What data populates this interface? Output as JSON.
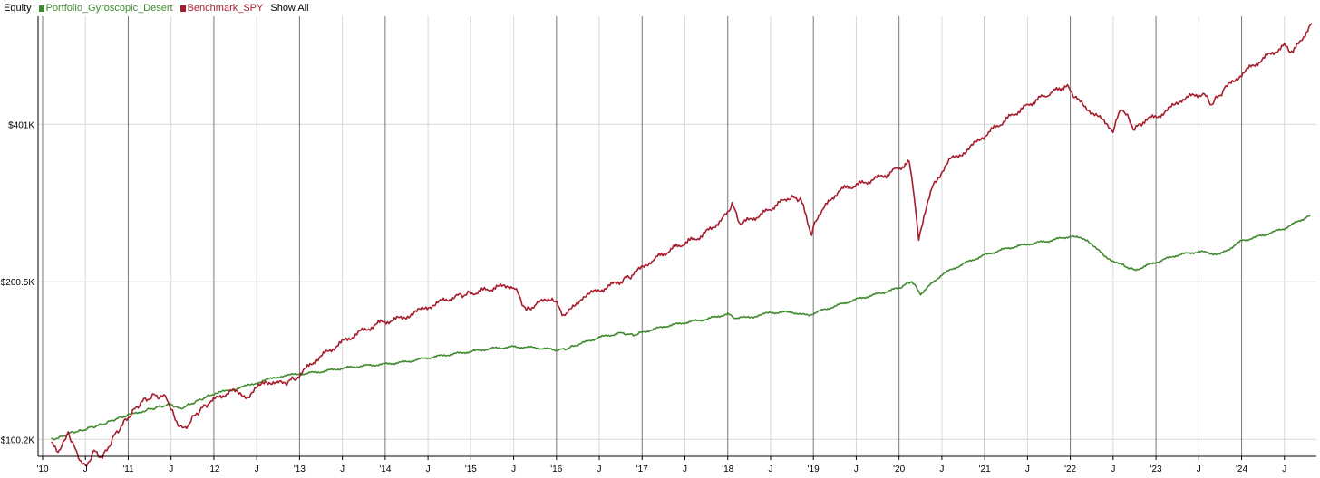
{
  "legend": {
    "title": "Equity",
    "series_labels": [
      "Portfolio_Gyroscopic_Desert",
      "Benchmark_SPY"
    ],
    "show_all_label": "Show All"
  },
  "colors": {
    "portfolio": "#3f8a2f",
    "benchmark": "#a51d2d",
    "grid_major": "#777777",
    "grid_minor": "#d8d8d8"
  },
  "chart_data": {
    "type": "line",
    "title": "",
    "xlabel": "",
    "ylabel": "",
    "y_scale": "log",
    "ylim": [
      93000,
      645000
    ],
    "xlim": [
      2010.0,
      2024.82
    ],
    "y_ticks": [
      {
        "value": 100200,
        "label": "$100.2K"
      },
      {
        "value": 200500,
        "label": "$200.5K"
      },
      {
        "value": 401000,
        "label": "$401K"
      }
    ],
    "x_ticks": [
      {
        "value": 2010.0,
        "label": "'10"
      },
      {
        "value": 2010.5,
        "label": "J"
      },
      {
        "value": 2011.0,
        "label": "'11"
      },
      {
        "value": 2011.5,
        "label": "J"
      },
      {
        "value": 2012.0,
        "label": "'12"
      },
      {
        "value": 2012.5,
        "label": "J"
      },
      {
        "value": 2013.0,
        "label": "'13"
      },
      {
        "value": 2013.5,
        "label": "J"
      },
      {
        "value": 2014.0,
        "label": "'14"
      },
      {
        "value": 2014.5,
        "label": "J"
      },
      {
        "value": 2015.0,
        "label": "'15"
      },
      {
        "value": 2015.5,
        "label": "J"
      },
      {
        "value": 2016.0,
        "label": "'16"
      },
      {
        "value": 2016.5,
        "label": "J"
      },
      {
        "value": 2017.0,
        "label": "'17"
      },
      {
        "value": 2017.5,
        "label": "J"
      },
      {
        "value": 2018.0,
        "label": "'18"
      },
      {
        "value": 2018.5,
        "label": "J"
      },
      {
        "value": 2019.0,
        "label": "'19"
      },
      {
        "value": 2019.5,
        "label": "J"
      },
      {
        "value": 2020.0,
        "label": "'20"
      },
      {
        "value": 2020.5,
        "label": "J"
      },
      {
        "value": 2021.0,
        "label": "'21"
      },
      {
        "value": 2021.5,
        "label": "J"
      },
      {
        "value": 2022.0,
        "label": "'22"
      },
      {
        "value": 2022.5,
        "label": "J"
      },
      {
        "value": 2023.0,
        "label": "'23"
      },
      {
        "value": 2023.5,
        "label": "J"
      },
      {
        "value": 2024.0,
        "label": "'24"
      },
      {
        "value": 2024.5,
        "label": "J"
      }
    ],
    "grid": true,
    "legend_position": "top-left",
    "series": [
      {
        "name": "Portfolio_Gyroscopic_Desert",
        "x": [
          2010.1,
          2010.2,
          2010.35,
          2010.45,
          2010.55,
          2010.7,
          2010.85,
          2011.0,
          2011.2,
          2011.35,
          2011.5,
          2011.6,
          2011.75,
          2011.9,
          2012.0,
          2012.2,
          2012.4,
          2012.6,
          2012.8,
          2013.0,
          2013.25,
          2013.5,
          2013.75,
          2014.0,
          2014.25,
          2014.5,
          2014.75,
          2015.0,
          2015.25,
          2015.5,
          2015.75,
          2016.0,
          2016.1,
          2016.25,
          2016.5,
          2016.75,
          2016.9,
          2017.0,
          2017.25,
          2017.5,
          2017.75,
          2018.0,
          2018.1,
          2018.3,
          2018.5,
          2018.75,
          2018.95,
          2019.0,
          2019.25,
          2019.5,
          2019.75,
          2020.0,
          2020.15,
          2020.25,
          2020.5,
          2020.75,
          2021.0,
          2021.25,
          2021.5,
          2021.75,
          2022.0,
          2022.2,
          2022.4,
          2022.6,
          2022.75,
          2023.0,
          2023.25,
          2023.5,
          2023.75,
          2024.0,
          2024.25,
          2024.5,
          2024.75,
          2024.8
        ],
        "y": [
          100200,
          101000,
          103500,
          104000,
          105500,
          107000,
          109500,
          111500,
          113800,
          115500,
          117000,
          114500,
          117500,
          120500,
          122500,
          124500,
          127000,
          130000,
          132500,
          133500,
          135000,
          137000,
          138500,
          139500,
          141000,
          143500,
          145500,
          147500,
          149500,
          150500,
          150000,
          148500,
          149000,
          152000,
          157000,
          160000,
          158500,
          160500,
          164500,
          167500,
          170000,
          174000,
          170500,
          172000,
          175000,
          175500,
          172500,
          174500,
          180000,
          185500,
          190000,
          195000,
          201000,
          190000,
          207000,
          217000,
          225500,
          232000,
          236500,
          240000,
          245000,
          241000,
          224000,
          216000,
          211000,
          218500,
          225500,
          229000,
          226000,
          240000,
          246000,
          253500,
          266000,
          268000
        ]
      },
      {
        "name": "Benchmark_SPY",
        "x": [
          2010.1,
          2010.18,
          2010.3,
          2010.4,
          2010.5,
          2010.6,
          2010.7,
          2010.85,
          2011.0,
          2011.15,
          2011.3,
          2011.45,
          2011.55,
          2011.65,
          2011.8,
          2011.95,
          2012.2,
          2012.4,
          2012.6,
          2012.8,
          2012.95,
          2013.2,
          2013.45,
          2013.7,
          2013.95,
          2014.2,
          2014.4,
          2014.6,
          2014.85,
          2015.0,
          2015.3,
          2015.5,
          2015.65,
          2015.75,
          2015.95,
          2016.1,
          2016.3,
          2016.5,
          2016.75,
          2016.9,
          2017.1,
          2017.4,
          2017.7,
          2017.95,
          2018.05,
          2018.15,
          2018.4,
          2018.7,
          2018.85,
          2018.98,
          2019.05,
          2019.3,
          2019.6,
          2019.85,
          2020.12,
          2020.18,
          2020.23,
          2020.4,
          2020.6,
          2020.8,
          2021.0,
          2021.3,
          2021.6,
          2021.95,
          2022.1,
          2022.3,
          2022.5,
          2022.6,
          2022.75,
          2022.85,
          2023.1,
          2023.3,
          2023.55,
          2023.65,
          2023.8,
          2024.0,
          2024.25,
          2024.5,
          2024.6,
          2024.82
        ],
        "y": [
          100200,
          93500,
          103500,
          94000,
          88500,
          95000,
          92500,
          102500,
          110500,
          118000,
          121500,
          120500,
          109000,
          104500,
          112500,
          118000,
          124000,
          121000,
          129500,
          128000,
          131000,
          142500,
          152000,
          160500,
          167500,
          171000,
          176500,
          182500,
          188500,
          190500,
          195500,
          197000,
          176500,
          181000,
          187000,
          172000,
          187500,
          193000,
          201000,
          207000,
          219500,
          234000,
          245500,
          265000,
          282000,
          258500,
          270000,
          290000,
          289000,
          247000,
          268000,
          300000,
          310500,
          321000,
          339000,
          288000,
          244000,
          308500,
          343000,
          358000,
          382000,
          415000,
          446000,
          475500,
          444000,
          417000,
          391500,
          432000,
          392000,
          406000,
          421500,
          448000,
          459500,
          438000,
          467500,
          500500,
          535000,
          567000,
          550000,
          625000
        ]
      }
    ]
  }
}
